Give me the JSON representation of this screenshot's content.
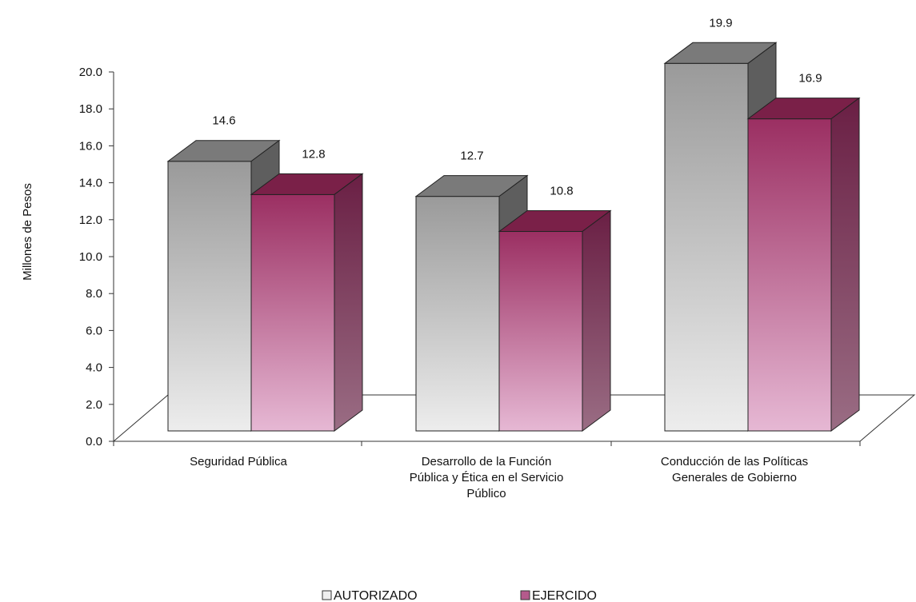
{
  "chart_data": {
    "type": "bar",
    "title": "",
    "xlabel": "",
    "ylabel": "Millones de Pesos",
    "ylim": [
      0,
      20
    ],
    "y_ticks": [
      "0.0",
      "2.0",
      "4.0",
      "6.0",
      "8.0",
      "10.0",
      "12.0",
      "14.0",
      "16.0",
      "18.0",
      "20.0"
    ],
    "categories": [
      [
        "Seguridad Pública"
      ],
      [
        "Desarrollo de la Función",
        "Pública y Ética en el Servicio",
        "Público"
      ],
      [
        "Conducción de las Políticas",
        "Generales de Gobierno"
      ]
    ],
    "series": [
      {
        "name": "AUTORIZADO",
        "values": [
          14.6,
          12.7,
          19.9
        ],
        "labels": [
          "14.6",
          "12.7",
          "19.9"
        ],
        "color_front_top": "#9a9a9a",
        "color_front_bottom": "#ededed",
        "color_top": "#7a7a7a",
        "color_side": "#5e5e5e"
      },
      {
        "name": "EJERCIDO",
        "values": [
          12.8,
          10.8,
          16.9
        ],
        "labels": [
          "12.8",
          "10.8",
          "16.9"
        ],
        "color_front_top": "#9b2f62",
        "color_front_bottom": "#e6b8d4",
        "color_top": "#7a2048",
        "color_side": "#6a1f44"
      }
    ],
    "grid": false,
    "legend_position": "bottom",
    "style": "3d-column"
  }
}
